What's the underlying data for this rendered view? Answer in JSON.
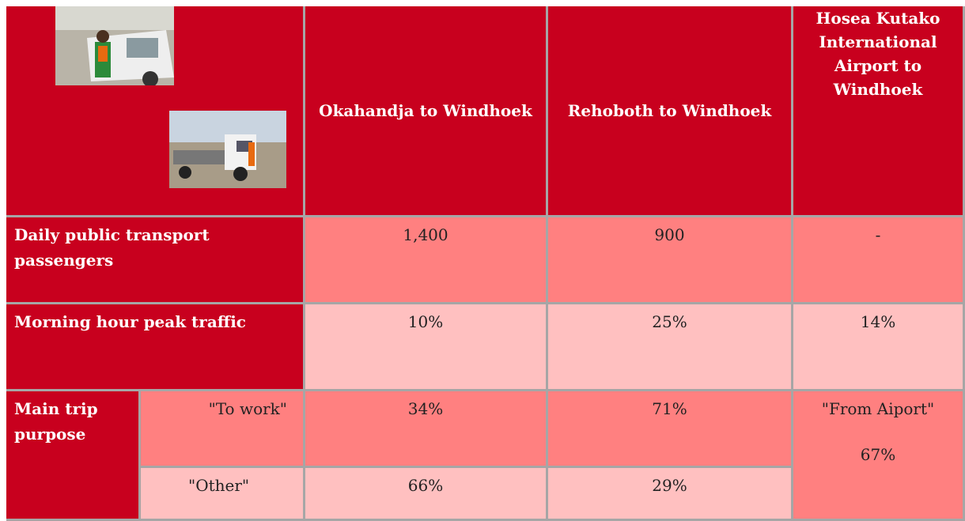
{
  "table": {
    "header": [
      "Okahandja to Windhoek",
      "Rehoboth to Windhoek",
      "Hosea Kutako International Airport to Windhoek"
    ],
    "rows": [
      {
        "label": "Daily public transport passengers",
        "values": [
          "1,400",
          "900",
          "-"
        ]
      },
      {
        "label": "Morning hour peak traffic",
        "values": [
          "10%",
          "25%",
          "14%"
        ]
      },
      {
        "label": "Main trip purpose",
        "sub": [
          {
            "label": "\"To work\"",
            "values": [
              "34%",
              "71%"
            ]
          },
          {
            "label": "\"Other\"",
            "values": [
              "66%",
              "29%"
            ]
          }
        ],
        "merged": {
          "label": "\"From Aiport\"",
          "value": "67%"
        }
      }
    ]
  }
}
